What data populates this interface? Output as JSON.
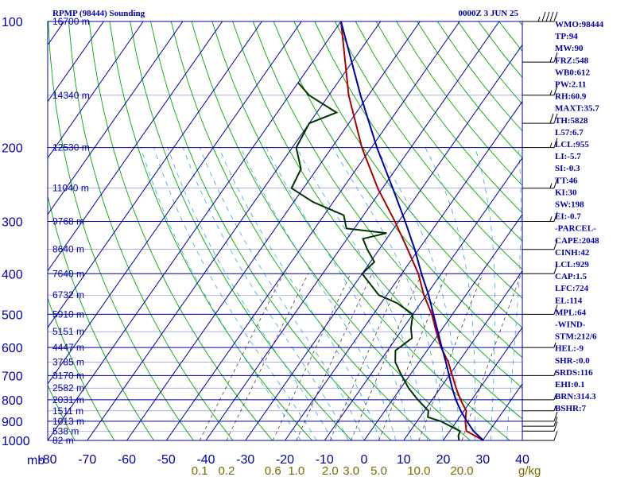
{
  "chart_data": {
    "type": "line",
    "title": "RPMP (98444) Sounding",
    "valid_time": "0000Z  3 JUN 25",
    "y_unit_label": "mb",
    "x_unit_label": "g/kg",
    "pressure_ticks": [
      "100",
      "200",
      "300",
      "400",
      "500",
      "600",
      "700",
      "800",
      "900",
      "1000"
    ],
    "temperature_ticks": [
      "-80",
      "-70",
      "-60",
      "-50",
      "-40",
      "-30",
      "-20",
      "-10",
      "0",
      "10",
      "20",
      "30",
      "40"
    ],
    "mixing_ratio_ticks": [
      "0.1",
      "0.2",
      "0.6",
      "1.0",
      "2.0",
      "3.0",
      "5.0",
      "10.0",
      "20.0"
    ],
    "height_labels": [
      {
        "p": 100,
        "label": "16700 m"
      },
      {
        "p": 150,
        "label": "14340 m"
      },
      {
        "p": 200,
        "label": "12530 m"
      },
      {
        "p": 250,
        "label": "11040 m"
      },
      {
        "p": 300,
        "label": "9768 m"
      },
      {
        "p": 350,
        "label": "8640 m"
      },
      {
        "p": 400,
        "label": "7640 m"
      },
      {
        "p": 450,
        "label": "6732 m"
      },
      {
        "p": 500,
        "label": "5910 m"
      },
      {
        "p": 550,
        "label": "5151 m"
      },
      {
        "p": 600,
        "label": "4447 m"
      },
      {
        "p": 650,
        "label": "3785 m"
      },
      {
        "p": 700,
        "label": "3170 m"
      },
      {
        "p": 750,
        "label": "2582 m"
      },
      {
        "p": 800,
        "label": "2031 m"
      },
      {
        "p": 850,
        "label": "1511 m"
      },
      {
        "p": 900,
        "label": "1013 m"
      },
      {
        "p": 950,
        "label": "538 m"
      },
      {
        "p": 1000,
        "label": "82 m"
      }
    ],
    "axis_ranges": {
      "temperature": [
        -80,
        40
      ],
      "pressure": [
        1000,
        100
      ],
      "pressure_scale": "log"
    },
    "grid": true,
    "series": [
      {
        "color": "#aa0000",
        "points": [
          [
            1000,
            30.2
          ],
          [
            950,
            24.2
          ],
          [
            900,
            22.2
          ],
          [
            850,
            20.6
          ],
          [
            800,
            17.2
          ],
          [
            750,
            14.0
          ],
          [
            700,
            10.8
          ],
          [
            650,
            7.4
          ],
          [
            600,
            3.0
          ],
          [
            550,
            -1.0
          ],
          [
            500,
            -5.2
          ],
          [
            450,
            -10.6
          ],
          [
            400,
            -15.8
          ],
          [
            350,
            -22.8
          ],
          [
            300,
            -31.0
          ],
          [
            250,
            -41.2
          ],
          [
            200,
            -52.4
          ],
          [
            150,
            -65.0
          ],
          [
            100,
            -80.0
          ]
        ]
      },
      {
        "color": "#003300",
        "points": [
          [
            1000,
            24.0
          ],
          [
            975,
            23.0
          ],
          [
            950,
            22.6
          ],
          [
            900,
            16.0
          ],
          [
            880,
            12.0
          ],
          [
            850,
            11.0
          ],
          [
            800,
            6.4
          ],
          [
            750,
            2.0
          ],
          [
            700,
            -2.0
          ],
          [
            650,
            -6.0
          ],
          [
            610,
            -8.0
          ],
          [
            570,
            -6.0
          ],
          [
            540,
            -8.0
          ],
          [
            500,
            -10.0
          ],
          [
            470,
            -16.0
          ],
          [
            450,
            -22.0
          ],
          [
            400,
            -30.0
          ],
          [
            375,
            -29.0
          ],
          [
            350,
            -33.0
          ],
          [
            330,
            -36.0
          ],
          [
            320,
            -31.0
          ],
          [
            312,
            -42.0
          ],
          [
            290,
            -45.0
          ],
          [
            270,
            -55.0
          ],
          [
            250,
            -63.0
          ],
          [
            225,
            -64.0
          ],
          [
            200,
            -69.0
          ],
          [
            175,
            -70.0
          ],
          [
            165,
            -65.0
          ],
          [
            150,
            -75.0
          ],
          [
            140,
            -80.0
          ]
        ]
      },
      {
        "color": "#0000aa",
        "points": [
          [
            1000,
            30.2
          ],
          [
            950,
            26.0
          ],
          [
            900,
            22.6
          ],
          [
            850,
            19.2
          ],
          [
            800,
            16.0
          ],
          [
            750,
            13.0
          ],
          [
            700,
            10.0
          ],
          [
            650,
            6.8
          ],
          [
            600,
            3.2
          ],
          [
            550,
            -0.6
          ],
          [
            500,
            -4.8
          ],
          [
            450,
            -9.4
          ],
          [
            400,
            -15.0
          ],
          [
            350,
            -21.0
          ],
          [
            300,
            -28.4
          ],
          [
            250,
            -37.4
          ],
          [
            200,
            -48.6
          ],
          [
            150,
            -62.0
          ],
          [
            100,
            -80.0
          ]
        ]
      }
    ],
    "wind_barbs": [
      {
        "p": 100,
        "speed_kt": 45
      },
      {
        "p": 125,
        "speed_kt": 15
      },
      {
        "p": 150,
        "speed_kt": 15
      },
      {
        "p": 175,
        "speed_kt": 20
      },
      {
        "p": 200,
        "speed_kt": 15
      },
      {
        "p": 250,
        "speed_kt": 15
      },
      {
        "p": 300,
        "speed_kt": 15
      },
      {
        "p": 350,
        "speed_kt": 10
      },
      {
        "p": 400,
        "speed_kt": 10
      },
      {
        "p": 500,
        "speed_kt": 10
      },
      {
        "p": 600,
        "speed_kt": 5
      },
      {
        "p": 700,
        "speed_kt": 5
      },
      {
        "p": 800,
        "speed_kt": 5
      },
      {
        "p": 850,
        "speed_kt": 5
      },
      {
        "p": 900,
        "speed_kt": 10
      },
      {
        "p": 925,
        "speed_kt": 10
      },
      {
        "p": 950,
        "speed_kt": 10
      },
      {
        "p": 1000,
        "speed_kt": 10
      }
    ],
    "indices": [
      "WMO:98444",
      "TP:94",
      "MW:90",
      "FRZ:548",
      "WB0:612",
      "PW:2.11",
      "RH:60.9",
      "MAXT:35.7",
      "TH:5828",
      "L57:6.7",
      "LCL:955",
      "LI:-5.7",
      "SI:-0.3",
      "TT:46",
      "KI:30",
      "SW:198",
      "EI:-0.7",
      "-PARCEL-",
      "CAPE:2048",
      "CINH:42",
      "LCL:929",
      "CAP:1.5",
      "LFC:724",
      "EL:114",
      "MPL:64",
      "-WIND-",
      "STM:212/6",
      "HEL:-9",
      "SHR-:0.0",
      "SRDS:116",
      "EHI:0.1",
      "BRN:314.3",
      "BSHR:7"
    ]
  }
}
